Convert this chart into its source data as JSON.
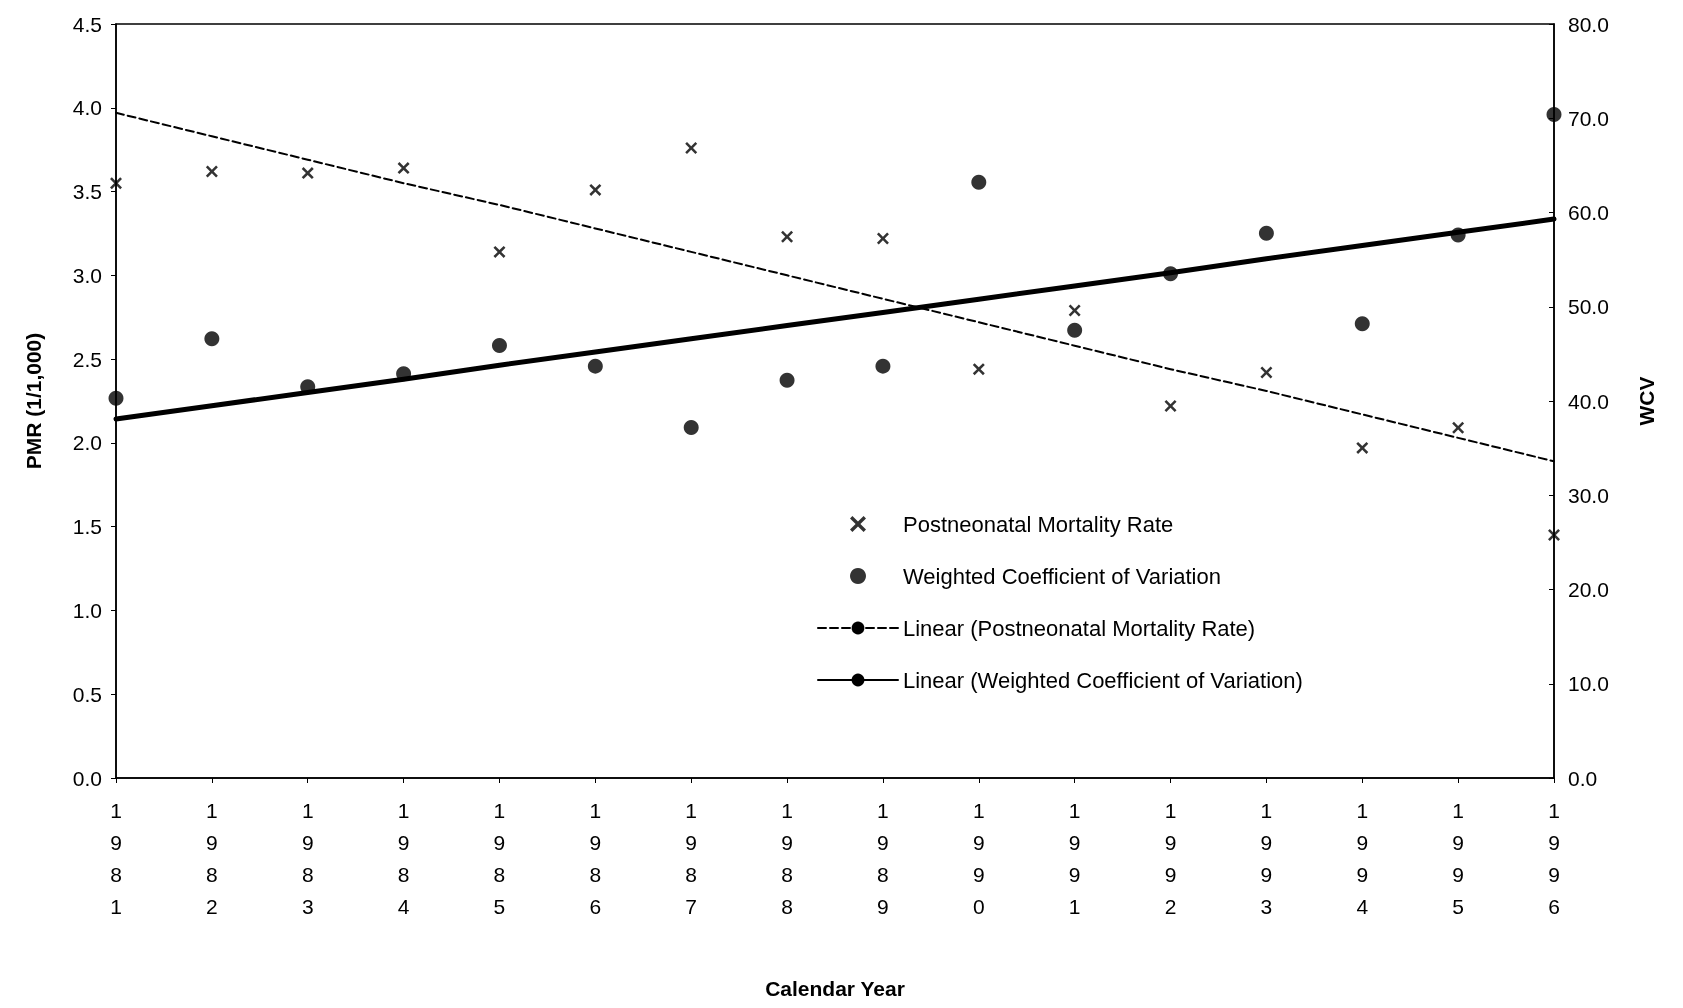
{
  "chart_data": {
    "type": "scatter",
    "xlabel": "Calendar Year",
    "ylabel": "PMR (1/1,000)",
    "y2label": "WCV",
    "categories": [
      "1981",
      "1982",
      "1983",
      "1984",
      "1985",
      "1986",
      "1987",
      "1988",
      "1989",
      "1990",
      "1991",
      "1992",
      "1993",
      "1994",
      "1995",
      "1996"
    ],
    "series": [
      {
        "name": "Postneonatal Mortality Rate",
        "marker": "cross",
        "color": "#000000",
        "values": [
          3.55,
          3.62,
          3.61,
          3.64,
          3.14,
          3.51,
          3.76,
          3.23,
          3.22,
          2.44,
          2.79,
          2.22,
          2.42,
          1.97,
          2.09,
          1.45
        ]
      },
      {
        "name": "Weighted Coefficient of Variation",
        "marker": "circle",
        "axis": "y2",
        "color": "#000000",
        "values": [
          40.3,
          46.6,
          41.5,
          42.9,
          45.9,
          43.7,
          37.2,
          42.2,
          43.7,
          63.2,
          47.5,
          53.5,
          57.8,
          48.2,
          57.6,
          70.4
        ]
      },
      {
        "name": "Linear (Postneonatal Mortality Rate)",
        "type": "line",
        "marker": "none",
        "line_style": "dashed",
        "color": "#000000",
        "values": [
          3.97,
          3.83,
          3.69,
          3.55,
          3.42,
          3.28,
          3.14,
          3.0,
          2.86,
          2.72,
          2.58,
          2.44,
          2.31,
          2.17,
          2.03,
          1.89
        ]
      },
      {
        "name": "Linear (Weighted Coefficient of Variation)",
        "type": "line",
        "marker": "none",
        "line_style": "solid",
        "axis": "y2",
        "color": "#000000",
        "values": [
          38.1,
          39.5,
          40.9,
          42.3,
          43.8,
          45.2,
          46.6,
          48.0,
          49.4,
          50.8,
          52.2,
          53.6,
          55.1,
          56.5,
          57.9,
          59.3
        ]
      }
    ],
    "ylim": [
      0,
      4.5
    ],
    "yticks": [
      {
        "value": 0,
        "label": "0.0"
      },
      {
        "value": 0.5,
        "label": "0.5"
      },
      {
        "value": 1,
        "label": "1.0"
      },
      {
        "value": 1.5,
        "label": "1.5"
      },
      {
        "value": 2,
        "label": "2.0"
      },
      {
        "value": 2.5,
        "label": "2.5"
      },
      {
        "value": 3,
        "label": "3.0"
      },
      {
        "value": 3.5,
        "label": "3.5"
      },
      {
        "value": 4,
        "label": "4.0"
      },
      {
        "value": 4.5,
        "label": "4.5"
      }
    ],
    "y2lim": [
      0,
      80
    ],
    "y2ticks": [
      {
        "value": 0,
        "label": "0.0"
      },
      {
        "value": 10,
        "label": "10.0"
      },
      {
        "value": 20,
        "label": "20.0"
      },
      {
        "value": 30,
        "label": "30.0"
      },
      {
        "value": 40,
        "label": "40.0"
      },
      {
        "value": 50,
        "label": "50.0"
      },
      {
        "value": 60,
        "label": "60.0"
      },
      {
        "value": 70,
        "label": "70.0"
      },
      {
        "value": 80,
        "label": "80.0"
      }
    ],
    "grid": false,
    "legend": "bottom"
  }
}
